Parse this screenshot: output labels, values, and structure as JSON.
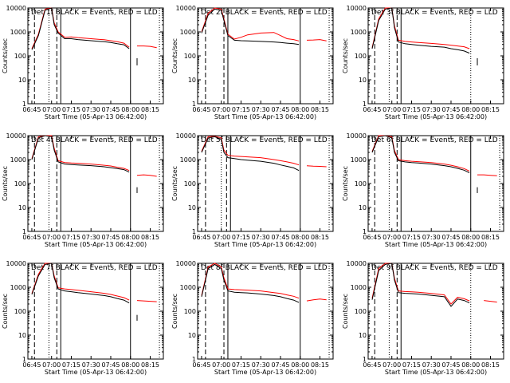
{
  "colors": {
    "events": "#000000",
    "lld": "#ff0000",
    "axes": "#000000",
    "background": "#ffffff"
  },
  "shared": {
    "ylabel": "Counts/sec",
    "xlabel": "Start Time (05-Apr-13 06:42:00)",
    "xticks": [
      "06:45",
      "07:00",
      "07:15",
      "07:30",
      "07:45",
      "08:00",
      "08:15"
    ],
    "yticks": [
      "1",
      "10",
      "100",
      "1000",
      "10000"
    ]
  },
  "chart_data": [
    {
      "type": "line",
      "title": "Det 1f BLACK = Events, RED = LLD",
      "xlabel": "Start Time (05-Apr-13 06:42:00)",
      "ylabel": "Counts/sec",
      "xlim": [
        "06:42",
        "08:25"
      ],
      "ylim": [
        1,
        10000
      ],
      "yscale": "log",
      "grid": false,
      "x": [
        "06:45",
        "06:50",
        "06:55",
        "07:00",
        "07:02",
        "07:05",
        "07:10",
        "07:15",
        "07:20",
        "07:30",
        "07:40",
        "07:45",
        "07:50",
        "07:55",
        "07:59",
        "08:03",
        "08:05",
        "08:10",
        "08:15",
        "08:20"
      ],
      "series": [
        {
          "name": "Events",
          "values": [
            180,
            700,
            8000,
            10000,
            2000,
            900,
            520,
            520,
            480,
            430,
            390,
            360,
            320,
            290,
            200,
            null,
            80,
            null,
            null,
            null
          ]
        },
        {
          "name": "LLD",
          "values": [
            200,
            800,
            9000,
            10000,
            2400,
            1000,
            600,
            620,
            580,
            520,
            470,
            430,
            390,
            340,
            230,
            null,
            260,
            260,
            250,
            220
          ]
        }
      ],
      "vlines": [
        {
          "x": "06:47",
          "style": "dashed"
        },
        {
          "x": "06:58",
          "style": "dotted"
        },
        {
          "x": "07:04",
          "style": "dashed"
        },
        {
          "x": "07:07",
          "style": "solid"
        },
        {
          "x": "08:00",
          "style": "solid"
        },
        {
          "x": "08:22",
          "style": "dotted"
        }
      ]
    },
    {
      "type": "line",
      "title": "Det 2f BLACK = Events, RED = LLD",
      "xlabel": "Start Time (05-Apr-13 06:42:00)",
      "ylabel": "Counts/sec",
      "xlim": [
        "06:42",
        "08:25"
      ],
      "ylim": [
        1,
        10000
      ],
      "yscale": "log",
      "grid": false,
      "x": [
        "06:45",
        "06:50",
        "06:55",
        "07:00",
        "07:02",
        "07:05",
        "07:10",
        "07:15",
        "07:20",
        "07:30",
        "07:40",
        "07:45",
        "07:50",
        "07:55",
        "07:59",
        "08:03",
        "08:05",
        "08:10",
        "08:15",
        "08:20"
      ],
      "series": [
        {
          "name": "Events",
          "values": [
            900,
            5000,
            9000,
            8000,
            3000,
            700,
            450,
            430,
            420,
            400,
            380,
            360,
            340,
            320,
            300,
            null,
            null,
            null,
            null,
            null
          ]
        },
        {
          "name": "LLD",
          "values": [
            1000,
            6000,
            10000,
            9000,
            3500,
            800,
            500,
            600,
            750,
            900,
            950,
            700,
            520,
            480,
            420,
            null,
            450,
            460,
            480,
            420
          ]
        }
      ],
      "vlines": [
        {
          "x": "06:48",
          "style": "dashed"
        },
        {
          "x": "07:02",
          "style": "dashed"
        },
        {
          "x": "07:05",
          "style": "solid"
        },
        {
          "x": "08:00",
          "style": "solid"
        },
        {
          "x": "08:22",
          "style": "dotted"
        }
      ]
    },
    {
      "type": "line",
      "title": "Det 3f BLACK = Events, RED = LLD",
      "xlabel": "Start Time (05-Apr-13 06:42:00)",
      "ylabel": "Counts/sec",
      "xlim": [
        "06:42",
        "08:25"
      ],
      "ylim": [
        1,
        10000
      ],
      "yscale": "log",
      "grid": false,
      "x": [
        "06:45",
        "06:50",
        "06:55",
        "07:00",
        "07:02",
        "07:05",
        "07:10",
        "07:15",
        "07:20",
        "07:30",
        "07:40",
        "07:45",
        "07:50",
        "07:55",
        "07:59",
        "08:03",
        "08:05",
        "08:10",
        "08:15",
        "08:20"
      ],
      "series": [
        {
          "name": "Events",
          "values": [
            200,
            3000,
            9000,
            10000,
            1500,
            380,
            320,
            300,
            280,
            250,
            230,
            200,
            180,
            160,
            130,
            null,
            80,
            null,
            null,
            null
          ]
        },
        {
          "name": "LLD",
          "values": [
            220,
            3500,
            10000,
            10000,
            1800,
            450,
            400,
            380,
            360,
            330,
            300,
            280,
            260,
            240,
            200,
            null,
            null,
            null,
            null,
            null
          ]
        }
      ],
      "vlines": [
        {
          "x": "06:47",
          "style": "dashed"
        },
        {
          "x": "06:58",
          "style": "dotted"
        },
        {
          "x": "07:04",
          "style": "dashed"
        },
        {
          "x": "07:07",
          "style": "solid"
        },
        {
          "x": "08:00",
          "style": "dotted"
        }
      ]
    },
    {
      "type": "line",
      "title": "Det 4f BLACK = Events, RED = LLD",
      "xlabel": "Start Time (05-Apr-13 06:42:00)",
      "ylabel": "Counts/sec",
      "xlim": [
        "06:42",
        "08:25"
      ],
      "ylim": [
        1,
        10000
      ],
      "yscale": "log",
      "grid": false,
      "x": [
        "06:45",
        "06:50",
        "06:55",
        "07:00",
        "07:02",
        "07:05",
        "07:10",
        "07:15",
        "07:20",
        "07:30",
        "07:40",
        "07:45",
        "07:50",
        "07:55",
        "07:59",
        "08:03",
        "08:05",
        "08:10",
        "08:15",
        "08:20"
      ],
      "series": [
        {
          "name": "Events",
          "values": [
            1000,
            8000,
            10000,
            9000,
            2500,
            800,
            650,
            620,
            600,
            560,
            500,
            460,
            420,
            380,
            300,
            null,
            70,
            null,
            null,
            null
          ]
        },
        {
          "name": "LLD",
          "values": [
            1100,
            9000,
            10000,
            10000,
            3000,
            900,
            750,
            720,
            700,
            650,
            580,
            540,
            480,
            430,
            350,
            null,
            220,
            230,
            220,
            200
          ]
        }
      ],
      "vlines": [
        {
          "x": "06:47",
          "style": "dashed"
        },
        {
          "x": "06:58",
          "style": "dotted"
        },
        {
          "x": "07:04",
          "style": "dashed"
        },
        {
          "x": "07:07",
          "style": "solid"
        },
        {
          "x": "08:00",
          "style": "solid"
        },
        {
          "x": "08:22",
          "style": "dotted"
        }
      ]
    },
    {
      "type": "line",
      "title": "Det 5f BLACK = Events, RED = LLD",
      "xlabel": "Start Time (05-Apr-13 06:42:00)",
      "ylabel": "Counts/sec",
      "xlim": [
        "06:42",
        "08:25"
      ],
      "ylim": [
        1,
        10000
      ],
      "yscale": "log",
      "grid": false,
      "x": [
        "06:45",
        "06:50",
        "06:55",
        "07:00",
        "07:02",
        "07:05",
        "07:10",
        "07:15",
        "07:20",
        "07:30",
        "07:40",
        "07:45",
        "07:50",
        "07:55",
        "07:59",
        "08:03",
        "08:05",
        "08:10",
        "08:15",
        "08:20"
      ],
      "series": [
        {
          "name": "Events",
          "values": [
            2000,
            8000,
            9000,
            7000,
            2000,
            1200,
            1100,
            1000,
            950,
            850,
            700,
            600,
            520,
            450,
            350,
            null,
            null,
            null,
            null,
            null
          ]
        },
        {
          "name": "LLD",
          "values": [
            2200,
            9000,
            9500,
            8000,
            2500,
            1500,
            1400,
            1350,
            1300,
            1200,
            1000,
            900,
            800,
            700,
            600,
            null,
            550,
            530,
            520,
            500
          ]
        }
      ],
      "vlines": [
        {
          "x": "06:48",
          "style": "dashed"
        },
        {
          "x": "07:00",
          "style": "dotted"
        },
        {
          "x": "07:04",
          "style": "dashed"
        },
        {
          "x": "07:07",
          "style": "solid"
        },
        {
          "x": "08:00",
          "style": "solid"
        },
        {
          "x": "08:22",
          "style": "dotted"
        }
      ]
    },
    {
      "type": "line",
      "title": "Det 6f BLACK = Events, RED = LLD",
      "xlabel": "Start Time (05-Apr-13 06:42:00)",
      "ylabel": "Counts/sec",
      "xlim": [
        "06:42",
        "08:25"
      ],
      "ylim": [
        1,
        10000
      ],
      "yscale": "log",
      "grid": false,
      "x": [
        "06:45",
        "06:50",
        "06:55",
        "07:00",
        "07:02",
        "07:05",
        "07:10",
        "07:15",
        "07:20",
        "07:30",
        "07:40",
        "07:45",
        "07:50",
        "07:55",
        "07:59",
        "08:03",
        "08:05",
        "08:10",
        "08:15",
        "08:20"
      ],
      "series": [
        {
          "name": "Events",
          "values": [
            2000,
            9000,
            10000,
            8000,
            2000,
            900,
            800,
            750,
            720,
            650,
            560,
            500,
            430,
            360,
            280,
            null,
            70,
            null,
            null,
            null
          ]
        },
        {
          "name": "LLD",
          "values": [
            2200,
            10000,
            10000,
            9000,
            2400,
            1000,
            900,
            850,
            820,
            750,
            650,
            580,
            500,
            420,
            330,
            null,
            230,
            230,
            220,
            210
          ]
        }
      ],
      "vlines": [
        {
          "x": "06:47",
          "style": "dashed"
        },
        {
          "x": "06:58",
          "style": "dotted"
        },
        {
          "x": "07:04",
          "style": "dashed"
        },
        {
          "x": "07:07",
          "style": "solid"
        },
        {
          "x": "08:00",
          "style": "solid"
        },
        {
          "x": "08:22",
          "style": "dotted"
        }
      ]
    },
    {
      "type": "line",
      "title": "Det 7f BLACK = Events, RED = LLD",
      "xlabel": "Start Time (05-Apr-13 06:42:00)",
      "ylabel": "Counts/sec",
      "xlim": [
        "06:42",
        "08:25"
      ],
      "ylim": [
        1,
        10000
      ],
      "yscale": "log",
      "grid": false,
      "x": [
        "06:45",
        "06:50",
        "06:55",
        "07:00",
        "07:02",
        "07:05",
        "07:10",
        "07:15",
        "07:20",
        "07:30",
        "07:40",
        "07:45",
        "07:50",
        "07:55",
        "07:59",
        "08:03",
        "08:05",
        "08:10",
        "08:15",
        "08:20"
      ],
      "series": [
        {
          "name": "Events",
          "values": [
            500,
            3000,
            9000,
            10000,
            2500,
            850,
            700,
            650,
            600,
            520,
            450,
            400,
            340,
            290,
            220,
            null,
            70,
            null,
            null,
            null
          ]
        },
        {
          "name": "LLD",
          "values": [
            550,
            3500,
            10000,
            10000,
            3000,
            950,
            850,
            800,
            750,
            650,
            560,
            500,
            430,
            370,
            290,
            null,
            280,
            270,
            260,
            250
          ]
        }
      ],
      "vlines": [
        {
          "x": "06:47",
          "style": "dashed"
        },
        {
          "x": "06:58",
          "style": "dotted"
        },
        {
          "x": "07:04",
          "style": "dashed"
        },
        {
          "x": "07:07",
          "style": "solid"
        },
        {
          "x": "08:00",
          "style": "solid"
        },
        {
          "x": "08:22",
          "style": "dotted"
        }
      ]
    },
    {
      "type": "line",
      "title": "Det 8f BLACK = Events, RED = LLD",
      "xlabel": "Start Time (05-Apr-13 06:42:00)",
      "ylabel": "Counts/sec",
      "xlim": [
        "06:42",
        "08:25"
      ],
      "ylim": [
        1,
        10000
      ],
      "yscale": "log",
      "grid": false,
      "x": [
        "06:45",
        "06:50",
        "06:55",
        "07:00",
        "07:02",
        "07:05",
        "07:10",
        "07:15",
        "07:20",
        "07:30",
        "07:40",
        "07:45",
        "07:50",
        "07:55",
        "07:59",
        "08:03",
        "08:05",
        "08:10",
        "08:15",
        "08:20"
      ],
      "series": [
        {
          "name": "Events",
          "values": [
            400,
            6000,
            9000,
            6000,
            2000,
            700,
            620,
            600,
            580,
            520,
            450,
            400,
            340,
            290,
            230,
            null,
            null,
            null,
            null,
            null
          ]
        },
        {
          "name": "LLD",
          "values": [
            450,
            7000,
            10000,
            7000,
            2500,
            850,
            800,
            780,
            760,
            700,
            600,
            550,
            480,
            420,
            350,
            null,
            270,
            300,
            320,
            300
          ]
        }
      ],
      "vlines": [
        {
          "x": "06:48",
          "style": "dashed"
        },
        {
          "x": "07:02",
          "style": "dashed"
        },
        {
          "x": "07:05",
          "style": "solid"
        },
        {
          "x": "08:00",
          "style": "solid"
        },
        {
          "x": "08:22",
          "style": "dotted"
        }
      ]
    },
    {
      "type": "line",
      "title": "Det 9f BLACK = Events, RED = LLD",
      "xlabel": "Start Time (05-Apr-13 06:42:00)",
      "ylabel": "Counts/sec",
      "xlim": [
        "06:42",
        "08:25"
      ],
      "ylim": [
        1,
        10000
      ],
      "yscale": "log",
      "grid": false,
      "x": [
        "06:45",
        "06:50",
        "06:55",
        "07:00",
        "07:02",
        "07:05",
        "07:10",
        "07:15",
        "07:20",
        "07:30",
        "07:40",
        "07:45",
        "07:50",
        "07:55",
        "07:59",
        "08:03",
        "08:05",
        "08:10",
        "08:15",
        "08:20"
      ],
      "series": [
        {
          "name": "Events",
          "values": [
            300,
            5000,
            9000,
            10000,
            2000,
            600,
            560,
            540,
            520,
            460,
            400,
            160,
            320,
            280,
            220,
            null,
            null,
            null,
            null,
            null
          ]
        },
        {
          "name": "LLD",
          "values": [
            350,
            6000,
            10000,
            10000,
            2400,
            700,
            660,
            640,
            620,
            550,
            480,
            200,
            380,
            330,
            270,
            null,
            null,
            280,
            260,
            240
          ]
        }
      ],
      "vlines": [
        {
          "x": "06:47",
          "style": "dashed"
        },
        {
          "x": "06:58",
          "style": "dotted"
        },
        {
          "x": "07:04",
          "style": "dashed"
        },
        {
          "x": "07:07",
          "style": "solid"
        },
        {
          "x": "08:00",
          "style": "dotted"
        }
      ]
    }
  ]
}
